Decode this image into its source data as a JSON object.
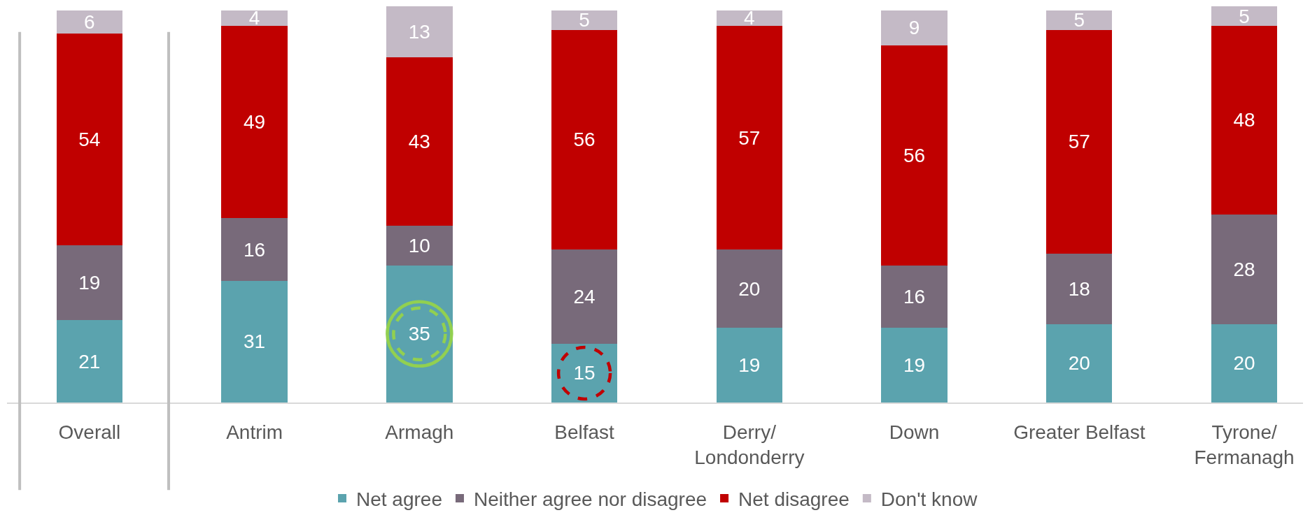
{
  "chart_data": {
    "type": "bar",
    "stacked": true,
    "data_labels": true,
    "legend": "bottom",
    "categories": [
      "Overall",
      "Antrim",
      "Armagh",
      "Belfast",
      "Derry/Londonderry",
      "Down",
      "Greater Belfast",
      "Tyrone/Fermanagh"
    ],
    "series": [
      {
        "name": "Net agree",
        "color": "#5ba3ae",
        "values": [
          21,
          31,
          35,
          15,
          19,
          19,
          20,
          20
        ]
      },
      {
        "name": "Neither agree nor disagree",
        "color": "#786a7a",
        "values": [
          19,
          16,
          10,
          24,
          20,
          16,
          18,
          28
        ]
      },
      {
        "name": "Net disagree",
        "color": "#c00000",
        "values": [
          54,
          49,
          43,
          56,
          57,
          56,
          57,
          48
        ]
      },
      {
        "name": "Don't know",
        "color": "#c4bac6",
        "values": [
          6,
          4,
          13,
          5,
          4,
          9,
          5,
          5
        ]
      }
    ]
  }
}
